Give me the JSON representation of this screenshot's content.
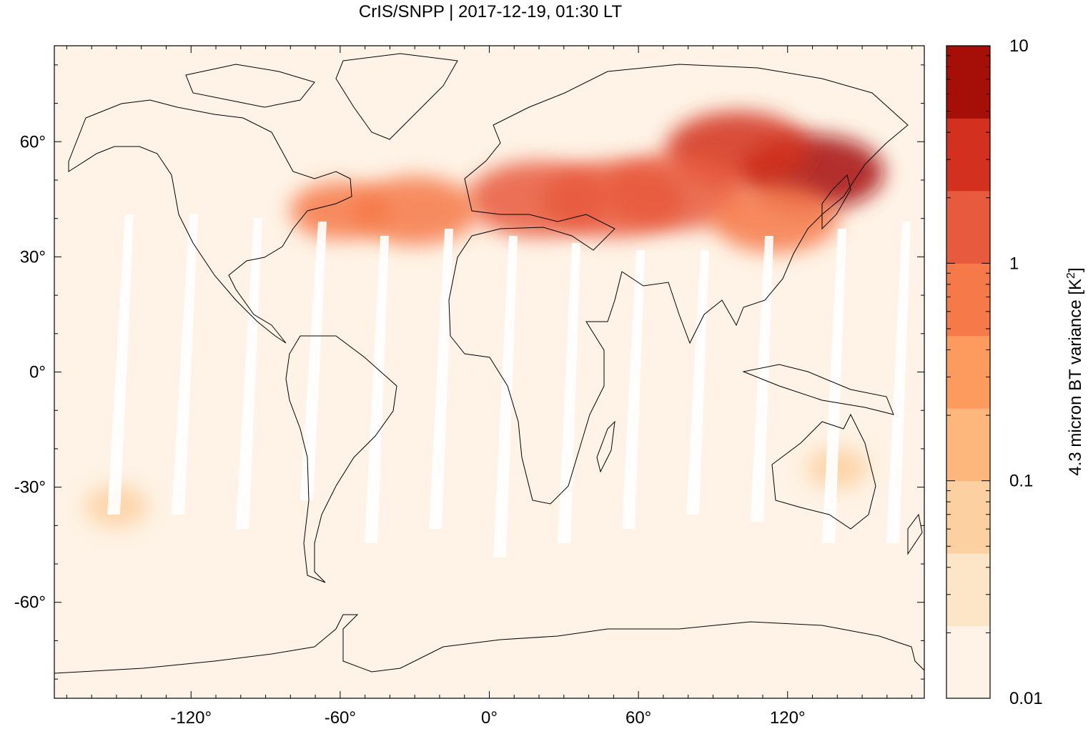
{
  "title": "CrIS/SNPP | 2017-12-19, 01:30 LT",
  "map": {
    "projection": "equirectangular",
    "lon_range": [
      -175,
      175
    ],
    "lat_range": [
      -85,
      85
    ],
    "x_ticks": [
      -120,
      -60,
      0,
      60,
      120
    ],
    "x_tick_labels": [
      "-120°",
      "-60°",
      "0°",
      "60°",
      "120°"
    ],
    "y_ticks": [
      60,
      30,
      0,
      -30,
      -60
    ],
    "y_tick_labels": [
      "60°",
      "30°",
      "0°",
      "-30°",
      "-60°"
    ]
  },
  "colorbar": {
    "label": "4.3 micron BT variance [K",
    "label_sup": "2",
    "label_end": "]",
    "scale": "log",
    "range": [
      0.01,
      10
    ],
    "tick_values": [
      10,
      1,
      0.1,
      0.01
    ],
    "tick_labels": [
      "10",
      "1",
      "0.1",
      "0.01"
    ],
    "colors": [
      "#fef3e6",
      "#fde5c8",
      "#fdd0a2",
      "#fdb77d",
      "#fd9a5e",
      "#f6794a",
      "#e85a3d",
      "#d3301f",
      "#a50f07"
    ]
  },
  "chart_data": {
    "type": "heatmap",
    "title": "CrIS/SNPP | 2017-12-19, 01:30 LT",
    "value_label": "4.3 micron BT variance [K2]",
    "color_scale": "log",
    "value_range": [
      0.01,
      10
    ],
    "regions": [
      {
        "lon": 130,
        "lat": 52,
        "value": 5.0
      },
      {
        "lon": 100,
        "lat": 58,
        "value": 3.0
      },
      {
        "lon": 50,
        "lat": 45,
        "value": 2.0
      },
      {
        "lon": 75,
        "lat": 47,
        "value": 1.5
      },
      {
        "lon": 20,
        "lat": 45,
        "value": 1.0
      },
      {
        "lon": -30,
        "lat": 42,
        "value": 0.8
      },
      {
        "lon": -60,
        "lat": 42,
        "value": 0.5
      },
      {
        "lon": 115,
        "lat": 40,
        "value": 0.8
      },
      {
        "lon": 0,
        "lat": 0,
        "value": 0.02
      },
      {
        "lon": -150,
        "lat": -35,
        "value": 0.08
      },
      {
        "lon": 140,
        "lat": -25,
        "value": 0.06
      }
    ]
  }
}
